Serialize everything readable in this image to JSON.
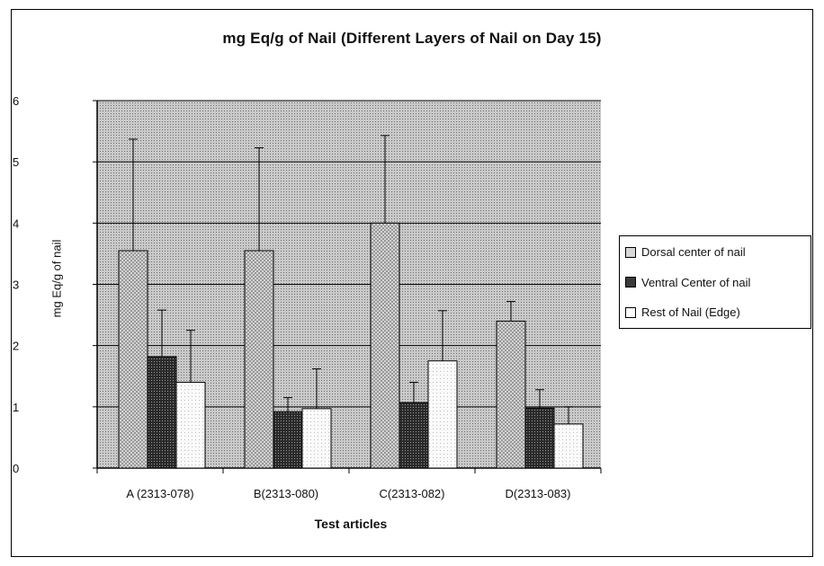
{
  "chart_data": {
    "type": "bar",
    "title": "mg Eq/g of Nail (Different Layers of Nail on Day 15)",
    "xlabel": "Test articles",
    "ylabel": "mg Eq/g of nail",
    "ylim": [
      0,
      6
    ],
    "yticks": [
      0,
      1,
      2,
      3,
      4,
      5,
      6
    ],
    "categories": [
      "A (2313-078)",
      "B(2313-080)",
      "C(2313-082)",
      "D(2313-083)"
    ],
    "series": [
      {
        "name": "Dorsal center of nail",
        "values": [
          3.55,
          3.55,
          4.0,
          2.4
        ],
        "error_upper": [
          5.37,
          5.23,
          5.43,
          2.72
        ],
        "color": "#c8c8c8"
      },
      {
        "name": "Ventral Center of nail",
        "values": [
          1.82,
          0.92,
          1.07,
          0.98
        ],
        "error_upper": [
          2.58,
          1.15,
          1.4,
          1.28
        ],
        "color": "#404040"
      },
      {
        "name": "Rest of Nail (Edge)",
        "values": [
          1.4,
          0.97,
          1.75,
          0.72
        ],
        "error_upper": [
          2.25,
          1.62,
          2.57,
          1.0
        ],
        "color": "#f2f2f2"
      }
    ],
    "grid": true,
    "legend_position": "right"
  }
}
